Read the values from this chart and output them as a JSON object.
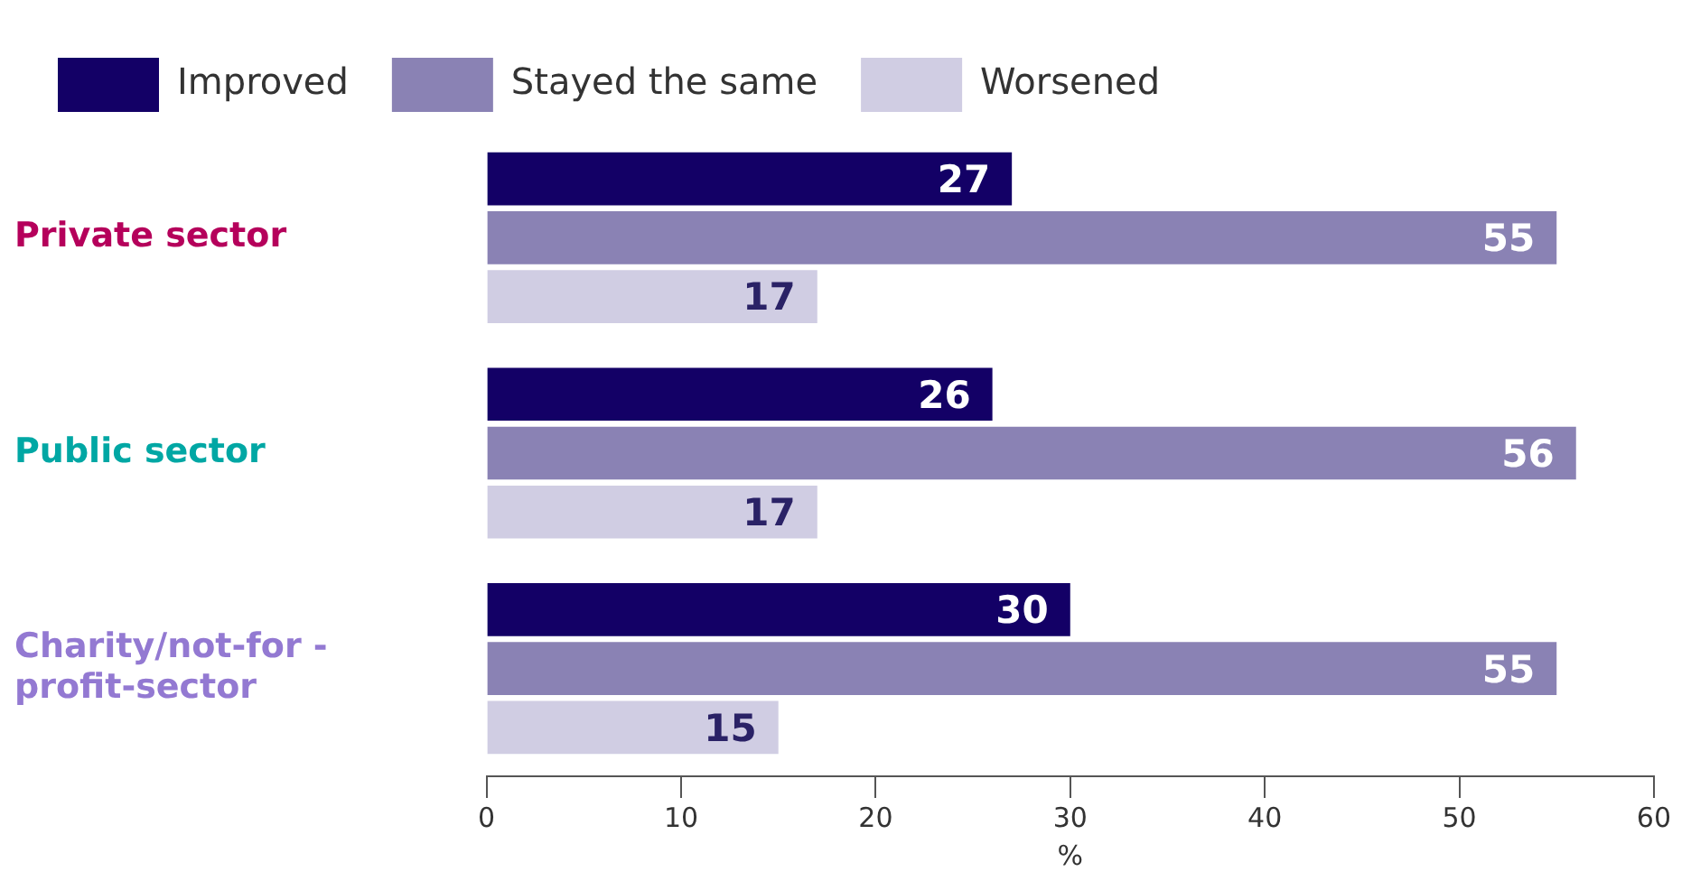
{
  "chart_data": {
    "type": "bar",
    "orientation": "horizontal",
    "xlabel": "%",
    "categories": [
      "Private sector",
      "Public sector",
      "Charity/not-for -profit-sector"
    ],
    "series": [
      {
        "name": "Improved",
        "color": "#130066",
        "values": [
          27,
          26,
          30
        ]
      },
      {
        "name": "Stayed the same",
        "color": "#8a82b4",
        "values": [
          55,
          56,
          55
        ]
      },
      {
        "name": "Worsened",
        "color": "#d0cde3",
        "values": [
          17,
          17,
          15
        ]
      }
    ],
    "xlim": [
      0,
      60
    ],
    "xticks": [
      0,
      10,
      20,
      30,
      40,
      50,
      60
    ],
    "grid": false,
    "legend": "top left",
    "data_labels": true
  }
}
